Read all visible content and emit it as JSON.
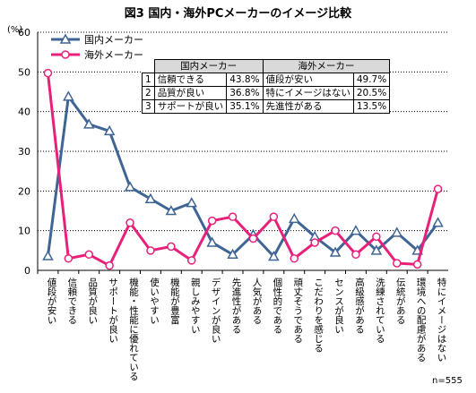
{
  "title": "図3 国内・海外PCメーカーのイメージ比較",
  "unit": "(%)",
  "note": "n=555",
  "legend": {
    "domestic": "国内メーカー",
    "foreign": "海外メーカー"
  },
  "colors": {
    "domestic": "#3f6594",
    "foreign": "#e8207a",
    "grid": "#000000"
  },
  "table": {
    "headers": [
      "国内メーカー",
      "海外メーカー"
    ],
    "rows": [
      {
        "rank": "1",
        "d_label": "信頼できる",
        "d_value": "43.8%",
        "f_label": "値段が安い",
        "f_value": "49.7%"
      },
      {
        "rank": "2",
        "d_label": "品質が良い",
        "d_value": "36.8%",
        "f_label": "特にイメージはない",
        "f_value": "20.5%"
      },
      {
        "rank": "3",
        "d_label": "サポートが良い",
        "d_value": "35.1%",
        "f_label": "先進性がある",
        "f_value": "13.5%"
      }
    ]
  },
  "chart_data": {
    "type": "line",
    "categories": [
      "値段が安い",
      "信頼できる",
      "品質が良い",
      "サポートが良い",
      "機能・性能に優れている",
      "使いやすい",
      "機能が豊富",
      "親しみやすい",
      "デザインが良い",
      "先進性がある",
      "人気がある",
      "個性的である",
      "頑丈そうである",
      "こだわりを感じる",
      "センスが良い",
      "高級感がある",
      "洗練されている",
      "伝統がある",
      "環境への配慮がある",
      "特にイメージはない"
    ],
    "series": [
      {
        "name": "国内メーカー",
        "values": [
          3.6,
          43.8,
          36.8,
          35.1,
          21.0,
          18.0,
          15.0,
          17.0,
          7.0,
          4.0,
          9.0,
          3.5,
          13.0,
          8.5,
          4.5,
          10.0,
          5.0,
          9.5,
          5.0,
          12.0
        ]
      },
      {
        "name": "海外メーカー",
        "values": [
          49.7,
          3.0,
          4.0,
          1.2,
          12.0,
          5.0,
          6.0,
          2.5,
          12.5,
          13.5,
          8.0,
          13.5,
          3.0,
          7.0,
          10.0,
          4.0,
          8.5,
          1.8,
          1.5,
          20.5
        ]
      }
    ],
    "ylim": [
      0,
      60
    ],
    "yticks": [
      "0",
      "10",
      "20",
      "30",
      "40",
      "50",
      "60"
    ],
    "grid": true,
    "legend_position": "top-left"
  }
}
